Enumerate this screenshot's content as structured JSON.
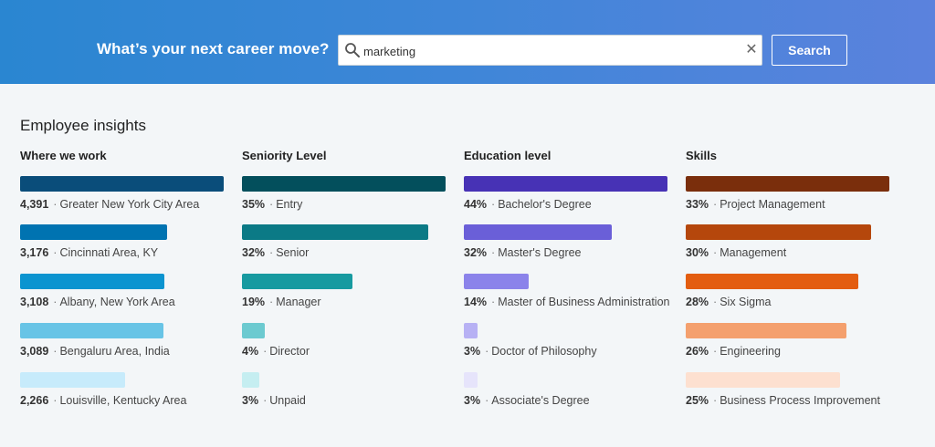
{
  "banner": {
    "title": "What’s your next career move?",
    "search_value": "marketing",
    "search_button": "Search"
  },
  "section_title": "Employee insights",
  "columns": [
    {
      "header": "Where we work",
      "scale_max": 4391,
      "items": [
        {
          "value": "4,391",
          "label": "Greater New York City Area",
          "amount": 4391,
          "color": "#0a4d7a"
        },
        {
          "value": "3,176",
          "label": "Cincinnati Area, KY",
          "amount": 3176,
          "color": "#0073b1"
        },
        {
          "value": "3,108",
          "label": "Albany, New York Area",
          "amount": 3108,
          "color": "#0b94d0"
        },
        {
          "value": "3,089",
          "label": "Bengaluru Area, India",
          "amount": 3089,
          "color": "#68c4e6"
        },
        {
          "value": "2,266",
          "label": "Louisville, Kentucky Area",
          "amount": 2266,
          "color": "#c7ebfb"
        }
      ]
    },
    {
      "header": "Seniority Level",
      "scale_max": 35,
      "items": [
        {
          "value": "35%",
          "label": "Entry",
          "amount": 35,
          "color": "#034f5c"
        },
        {
          "value": "32%",
          "label": "Senior",
          "amount": 32,
          "color": "#0b7a86"
        },
        {
          "value": "19%",
          "label": "Manager",
          "amount": 19,
          "color": "#179aa0"
        },
        {
          "value": "4%",
          "label": "Director",
          "amount": 4,
          "color": "#6ccad0"
        },
        {
          "value": "3%",
          "label": "Unpaid",
          "amount": 3,
          "color": "#c5eef1"
        }
      ]
    },
    {
      "header": "Education level",
      "scale_max": 44,
      "items": [
        {
          "value": "44%",
          "label": "Bachelor's Degree",
          "amount": 44,
          "color": "#4732b5"
        },
        {
          "value": "32%",
          "label": "Master's Degree",
          "amount": 32,
          "color": "#6a5fd8"
        },
        {
          "value": "14%",
          "label": "Master of Business Administration",
          "amount": 14,
          "color": "#8b83ea"
        },
        {
          "value": "3%",
          "label": "Doctor of Philosophy",
          "amount": 3,
          "color": "#b7b1f4"
        },
        {
          "value": "3%",
          "label": "Associate's Degree",
          "amount": 3,
          "color": "#e6e4fb"
        }
      ]
    },
    {
      "header": "Skills",
      "scale_max": 33,
      "items": [
        {
          "value": "33%",
          "label": "Project Management",
          "amount": 33,
          "color": "#7a2e0c"
        },
        {
          "value": "30%",
          "label": "Management",
          "amount": 30,
          "color": "#b5470c"
        },
        {
          "value": "28%",
          "label": "Six Sigma",
          "amount": 28,
          "color": "#e35d10"
        },
        {
          "value": "26%",
          "label": "Engineering",
          "amount": 26,
          "color": "#f4a06e"
        },
        {
          "value": "25%",
          "label": "Business Process Improvement",
          "amount": 25,
          "color": "#fde0d0"
        }
      ]
    }
  ]
}
